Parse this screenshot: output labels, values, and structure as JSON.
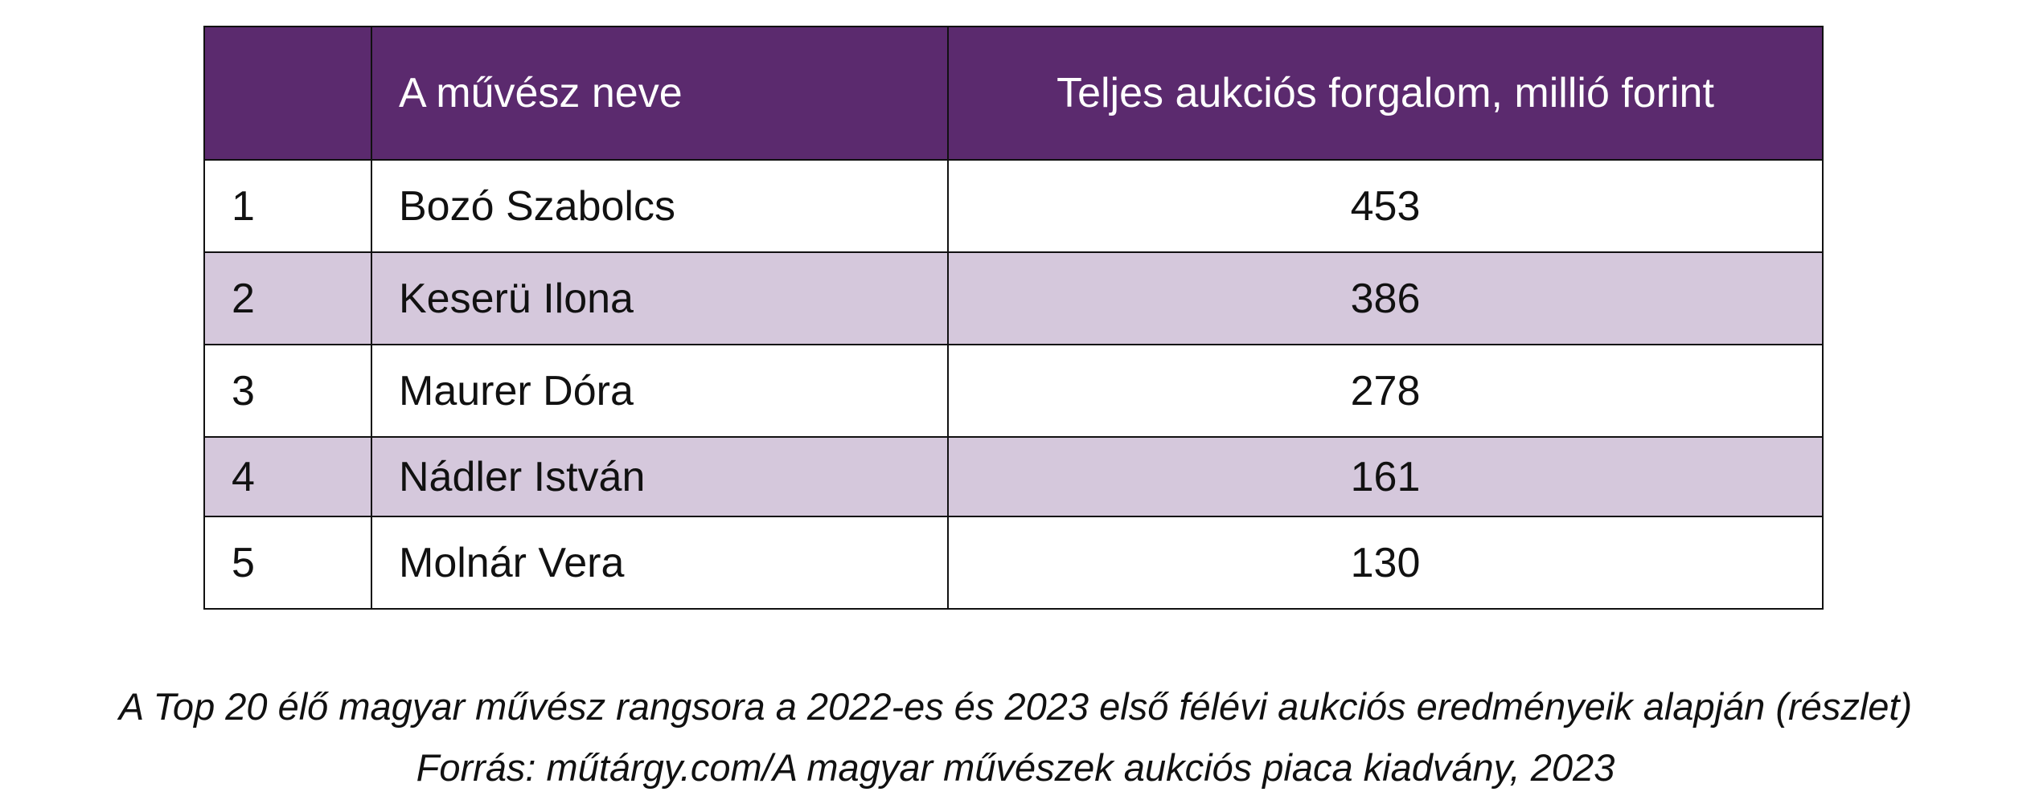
{
  "table": {
    "header": [
      "A művész neve",
      "Teljes aukciós forgalom, millió forint"
    ],
    "rows": [
      [
        1,
        "Bozó Szabolcs",
        453
      ],
      [
        2,
        "Keserü Ilona",
        386
      ],
      [
        3,
        "Maurer Dóra",
        278
      ],
      [
        4,
        "Nádler István",
        161
      ],
      [
        5,
        "Molnár Vera",
        130
      ]
    ]
  },
  "caption": [
    "A Top 20 élő magyar művész rangsora a 2022-es és 2023 első félévi aukciós eredményeik alapján (részlet)",
    "Forrás: műtárgy.com/A magyar művészek aukciós piaca kiadvány, 2023"
  ]
}
